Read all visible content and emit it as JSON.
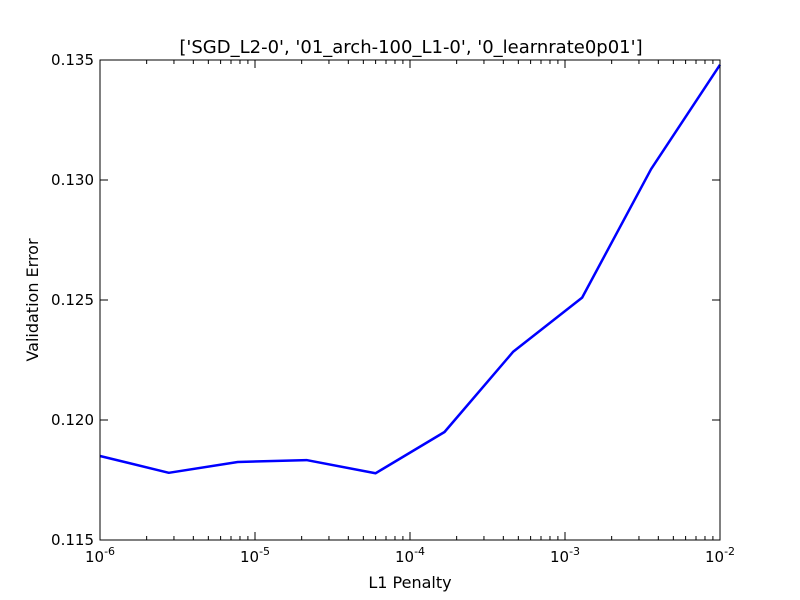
{
  "chart_data": {
    "type": "line",
    "title": "['SGD_L2-0', '01_arch-100_L1-0', '0_learnrate0p01']",
    "xlabel": "L1 Penalty",
    "ylabel": "Validation Error",
    "xscale": "log",
    "xlim": [
      1e-06,
      0.01
    ],
    "ylim": [
      0.115,
      0.135
    ],
    "x_ticks": [
      {
        "value": 1e-06,
        "base": "10",
        "exp": "-6"
      },
      {
        "value": 1e-05,
        "base": "10",
        "exp": "-5"
      },
      {
        "value": 0.0001,
        "base": "10",
        "exp": "-4"
      },
      {
        "value": 0.001,
        "base": "10",
        "exp": "-3"
      },
      {
        "value": 0.01,
        "base": "10",
        "exp": "-2"
      }
    ],
    "y_ticks": [
      {
        "value": 0.115,
        "label": "0.115"
      },
      {
        "value": 0.12,
        "label": "0.120"
      },
      {
        "value": 0.125,
        "label": "0.125"
      },
      {
        "value": 0.13,
        "label": "0.130"
      },
      {
        "value": 0.135,
        "label": "0.135"
      }
    ],
    "grid": false,
    "series": [
      {
        "color": "#0000ff",
        "x": [
          1e-06,
          2.78e-06,
          7.74e-06,
          2.15e-05,
          5.99e-05,
          0.000167,
          0.000464,
          0.00129,
          0.00359,
          0.01
        ],
        "y": [
          0.1185,
          0.1178,
          0.11825,
          0.11833,
          0.11778,
          0.1195,
          0.12285,
          0.1251,
          0.13045,
          0.1348
        ]
      }
    ]
  }
}
